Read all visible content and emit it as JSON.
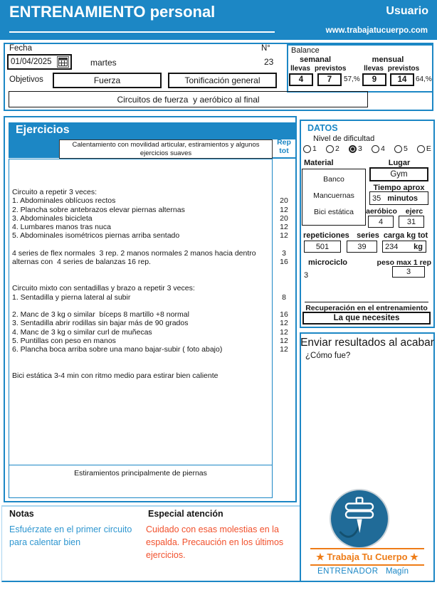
{
  "header": {
    "title": "ENTRENAMIENTO personal",
    "user": "Usuario",
    "website": "www.trabajatucuerpo.com"
  },
  "top": {
    "fecha_label": "Fecha",
    "fecha_value": "01/04/2025",
    "weekday": "martes",
    "numero_label": "N°",
    "numero_value": "23",
    "objetivos_label": "Objetivos",
    "objetivo1": "Fuerza",
    "objetivo2": "Tonificación general",
    "descripcion": "Circuitos de fuerza  y aeróbico al final",
    "balance": {
      "label": "Balance",
      "semanal_label": "semanal",
      "mensual_label": "mensual",
      "llevas_label": "llevas",
      "previstos_label": "previstos",
      "semanal_llevas": "4",
      "semanal_previstos": "7",
      "semanal_pct": "57,%",
      "mensual_llevas": "9",
      "mensual_previstos": "14",
      "mensual_pct": "64,%"
    }
  },
  "ejercicios": {
    "title": "Ejercicios",
    "calentamiento": "Calentamiento con movilidad articular, estiramientos y algunos ejercicios suaves",
    "rep_header_line1": "Rep",
    "rep_header_line2": "tot",
    "rows": [
      {
        "text": "Circuito a repetir 3 veces:",
        "rep": ""
      },
      {
        "text": "1. Abdominales oblícuos rectos",
        "rep": "20"
      },
      {
        "text": "2. Plancha sobre antebrazos elevar piernas alternas",
        "rep": "12"
      },
      {
        "text": "3. Abdominales bicicleta",
        "rep": "20"
      },
      {
        "text": "4. Lumbares manos tras nuca",
        "rep": "12"
      },
      {
        "text": "5. Abdominales isométricos piernas arriba sentado",
        "rep": "12"
      },
      {
        "text": "",
        "rep": ""
      },
      {
        "text": "4 series de flex normales  3 rep. 2 manos normales 2 manos hacia dentro",
        "rep": "3"
      },
      {
        "text": "alternas con  4 series de balanzas 16 rep.",
        "rep": "16"
      },
      {
        "text": "",
        "rep": ""
      },
      {
        "text": "",
        "rep": ""
      },
      {
        "text": "Circuito mixto con sentadillas y brazo a repetir 3 veces:",
        "rep": ""
      },
      {
        "text": "1. Sentadilla y pierna lateral al subir",
        "rep": "8"
      },
      {
        "text": "",
        "rep": ""
      },
      {
        "text": "2. Manc de 3 kg o similar  bíceps 8 martillo +8 normal",
        "rep": "16"
      },
      {
        "text": "3. Sentadilla abrir rodillas sin bajar más de 90 grados",
        "rep": "12"
      },
      {
        "text": "4. Manc de 3 kg o similar curl de muñecas",
        "rep": "12"
      },
      {
        "text": "5. Puntillas con peso en manos",
        "rep": "12"
      },
      {
        "text": "6. Plancha boca arriba sobre una mano bajar-subir ( foto abajo)",
        "rep": "12"
      },
      {
        "text": "",
        "rep": ""
      },
      {
        "text": "",
        "rep": ""
      },
      {
        "text": "Bici estática 3-4 min con ritmo medio para estirar bien caliente",
        "rep": ""
      }
    ],
    "estiramientos": "Estiramientos principalmente de piernas"
  },
  "datos": {
    "title": "DATOS",
    "nivel_label": "Nivel de dificultad",
    "nivel_options": [
      "1",
      "2",
      "3",
      "4",
      "5",
      "E"
    ],
    "nivel_selected": "3",
    "material_label": "Material",
    "material_items": [
      "Banco",
      "Mancuernas",
      "Bici estática"
    ],
    "lugar_label": "Lugar",
    "lugar_value": "Gym",
    "tiempo_label": "Tiempo aprox",
    "tiempo_value": "35",
    "tiempo_unit": "minutos",
    "aerobico_label": "aeróbico",
    "aerobico_value": "4",
    "ejerc_label": "ejerc",
    "ejerc_value": "31",
    "repeticiones_label": "repeticiones",
    "repeticiones_value": "501",
    "series_label": "series",
    "series_value": "39",
    "carga_label": "carga kg tot",
    "carga_value": "234",
    "carga_unit": "kg",
    "microciclo_label": "microciclo",
    "microciclo_value": "3",
    "peso_label": "peso max 1 rep",
    "peso_value": "3",
    "recuperacion_label": "Recuperación en el entrenamiento",
    "recuperacion_value": "La que necesites"
  },
  "resultados": {
    "title": "Enviar resultados al acabar",
    "question": "¿Cómo fue?",
    "brand": "★ Trabaja Tu Cuerpo ★",
    "entrenador_label": "ENTRENADOR",
    "entrenador_name": "Magín"
  },
  "footer": {
    "notas_label": "Notas",
    "notas_text": "Esfuérzate en el primer circuito para calentar bien",
    "atencion_label": "Especial atención",
    "atencion_text": "Cuidado con esas molestias en la espalda. Precaución en los últimos ejercicios."
  },
  "colors": {
    "blue": "#1c87c5",
    "light_blue": "#a9d5ef",
    "red": "#f1512d",
    "orange": "#ee7c17",
    "logo_circle": "#206b98"
  }
}
